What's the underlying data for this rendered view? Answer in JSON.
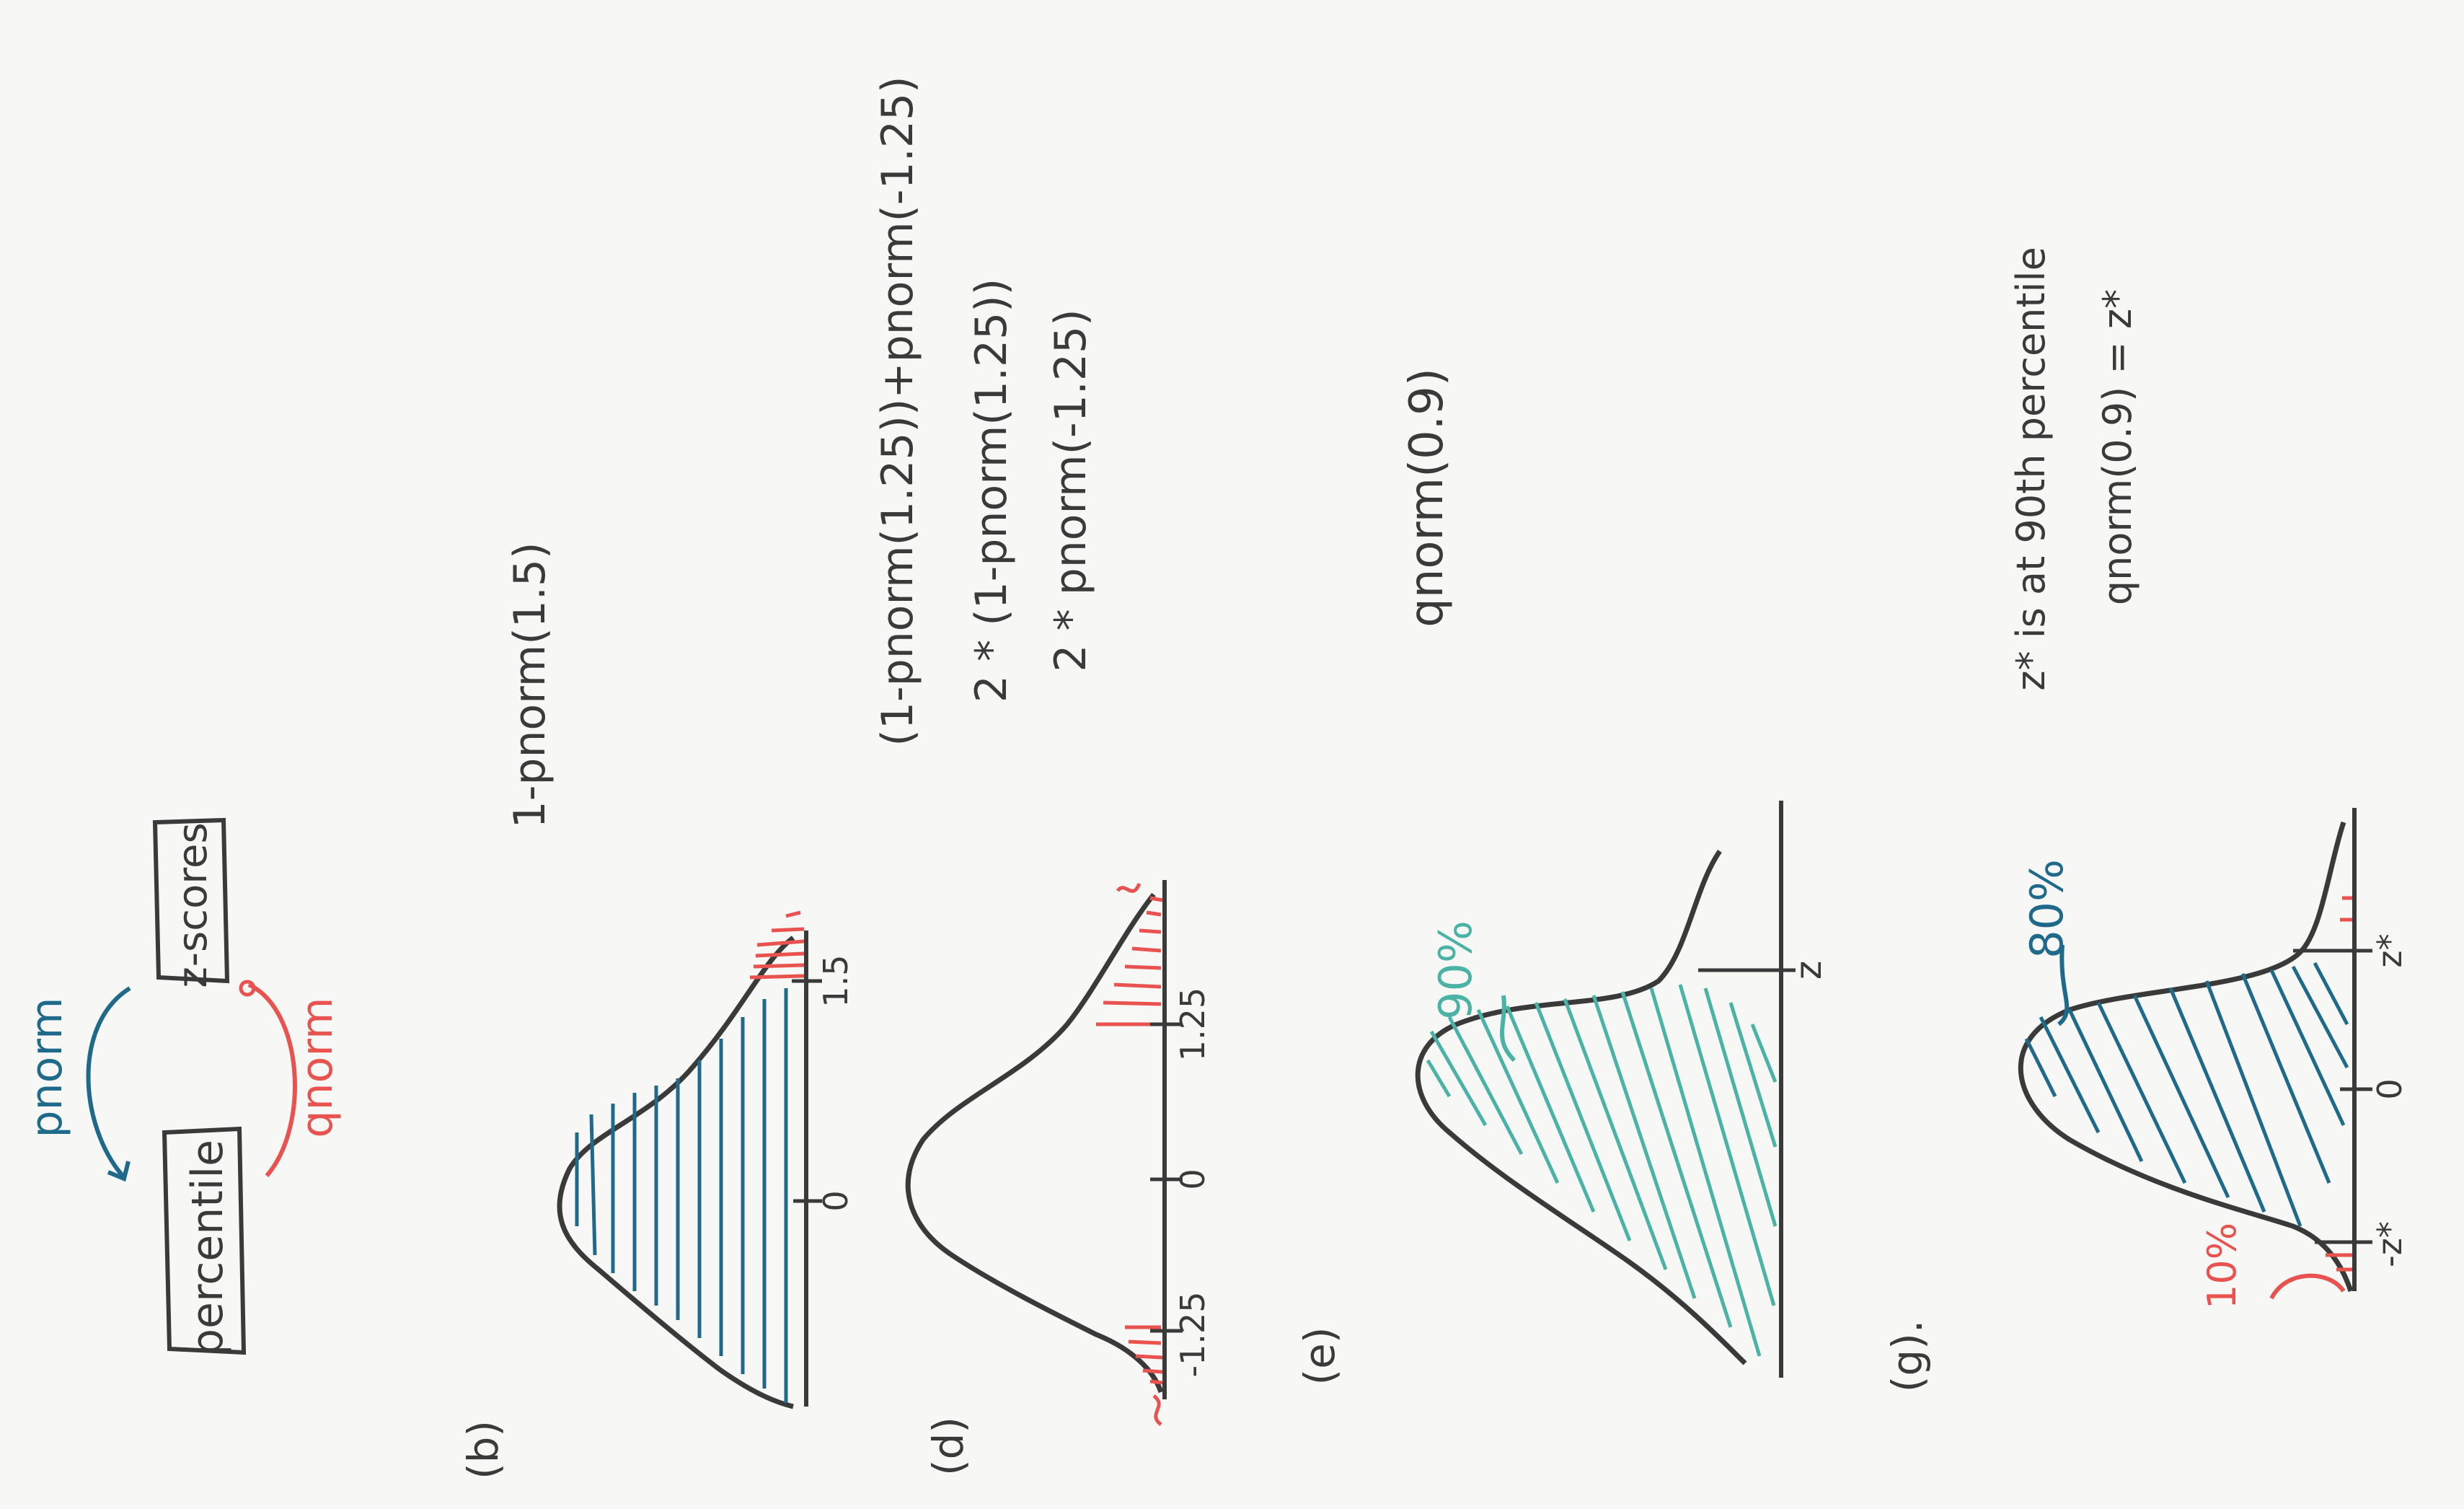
{
  "colors": {
    "ink": "#3a3a3a",
    "blue": "#1f6a8a",
    "red": "#e8524f",
    "teal": "#4ab3a6",
    "paper": "#f7f7f6"
  },
  "diagram": {
    "percentile_box": "percentile",
    "zscores_box": "z-scores",
    "pnorm_arrow_label": "pnorm",
    "qnorm_arrow_label": "qnorm"
  },
  "part_b": {
    "label": "(b)",
    "expression": "1-pnorm(1.5)",
    "tick_zero": "0",
    "tick_value": "1.5"
  },
  "part_d": {
    "label": "(d)",
    "expression_1": "(1-pnorm(1.25))+pnorm(-1.25)",
    "expression_2": "2 * (1-pnorm(1.25))",
    "expression_3": "2 * pnorm(-1.25)",
    "tick_neg": "-1.25",
    "tick_zero": "0",
    "tick_pos": "1.25"
  },
  "part_e": {
    "label": "(e)",
    "expression": "qnorm(0.9)",
    "percent_label": "90%",
    "tick_z": "z"
  },
  "part_g": {
    "label": "(g).",
    "note_line_1": "z* is at 90th percentile",
    "note_line_2": "qnorm(0.9) = z*",
    "percent_label": "80%",
    "tail_label": "10%",
    "tick_neg": "-z*",
    "tick_zero": "0",
    "tick_pos": "z*"
  }
}
